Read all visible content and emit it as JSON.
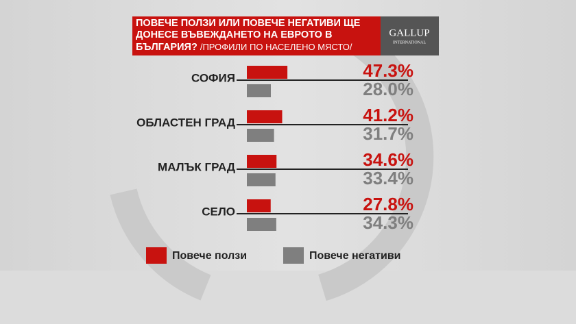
{
  "chart_data": {
    "type": "bar",
    "orientation": "horizontal",
    "title": "ПОВЕЧЕ ПОЛЗИ ИЛИ ПОВЕЧЕ НЕГАТИВИ ЩЕ ДОНЕСЕ ВЪВЕЖДАНЕТО НА ЕВРОТО В БЪЛГАРИЯ?",
    "subtitle": "/ПРОФИЛИ ПО НАСЕЛЕНО МЯСТО/",
    "logo": {
      "name": "GALLUP",
      "sub": "INTERNATIONAL"
    },
    "categories": [
      "СОФИЯ",
      "ОБЛАСТЕН ГРАД",
      "МАЛЪК ГРАД",
      "СЕЛО"
    ],
    "series": [
      {
        "name": "Повече ползи",
        "color": "#c8120f",
        "values": [
          47.3,
          41.2,
          34.6,
          27.8
        ],
        "value_labels": [
          "47.3%",
          "41.2%",
          "34.6%",
          "27.8%"
        ]
      },
      {
        "name": "Повече негативи",
        "color": "#7f7f7f",
        "values": [
          28.0,
          31.7,
          33.4,
          34.3
        ],
        "value_labels": [
          "28.0%",
          "31.7%",
          "33.4%",
          "34.3%"
        ]
      }
    ],
    "legend": "bottom"
  }
}
